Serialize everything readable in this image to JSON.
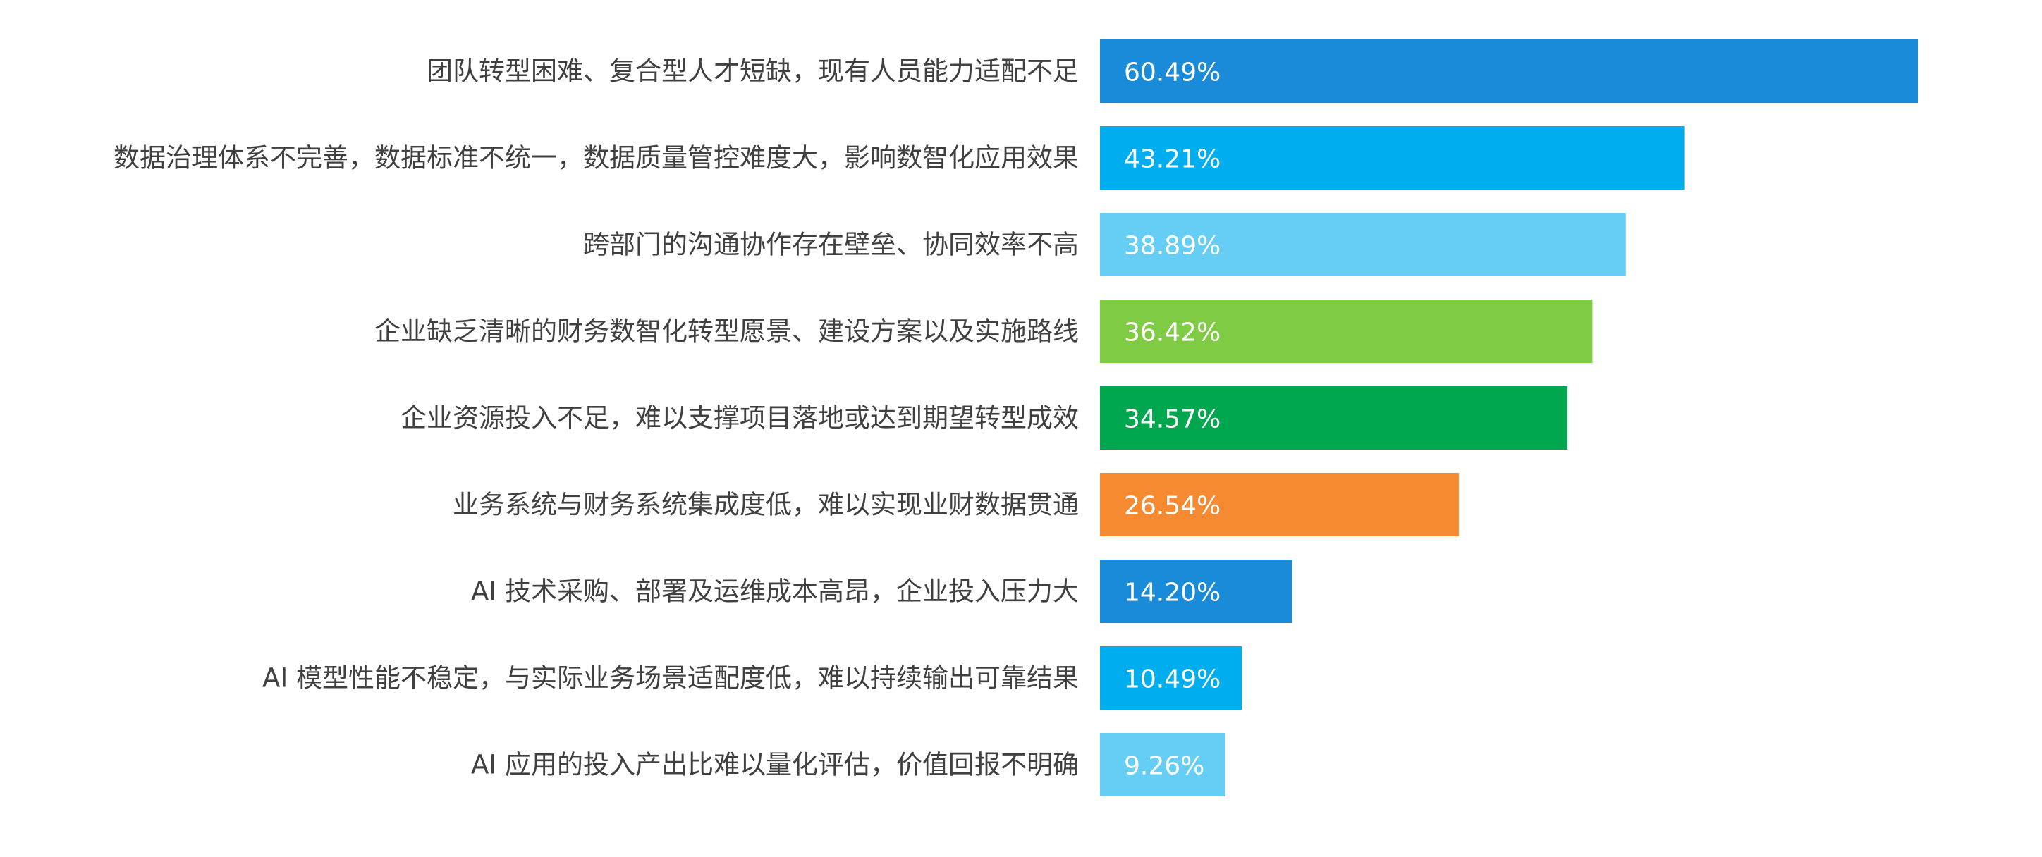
{
  "chart_data": {
    "type": "bar",
    "orientation": "horizontal",
    "categories": [
      "团队转型困难、复合型人才短缺，现有人员能力适配不足",
      "数据治理体系不完善，数据标准不统一，数据质量管控难度大，影响数智化应用效果",
      "跨部门的沟通协作存在壁垒、协同效率不高",
      "企业缺乏清晰的财务数智化转型愿景、建设方案以及实施路线",
      "企业资源投入不足，难以支撑项目落地或达到期望转型成效",
      "业务系统与财务系统集成度低，难以实现业财数据贯通",
      "AI 技术采购、部署及运维成本高昂，企业投入压力大",
      "AI 模型性能不稳定，与实际业务场景适配度低，难以持续输出可靠结果",
      "AI 应用的投入产出比难以量化评估，价值回报不明确"
    ],
    "values": [
      60.49,
      43.21,
      38.89,
      36.42,
      34.57,
      26.54,
      14.2,
      10.49,
      9.26
    ],
    "value_labels": [
      "60.49%",
      "43.21%",
      "38.89%",
      "36.42%",
      "34.57%",
      "26.54%",
      "14.20%",
      "10.49%",
      "9.26%"
    ],
    "colors": [
      "#1a8bd8",
      "#00aeef",
      "#66cef5",
      "#7fcc44",
      "#00a74f",
      "#f58a31",
      "#1a8bd8",
      "#00aeef",
      "#66cef5"
    ],
    "value_label_color": "#ffffff",
    "category_label_color": "#404040",
    "xlim": [
      0,
      70
    ],
    "grid": false,
    "legend": "none",
    "title": "",
    "xlabel": "",
    "ylabel": ""
  }
}
